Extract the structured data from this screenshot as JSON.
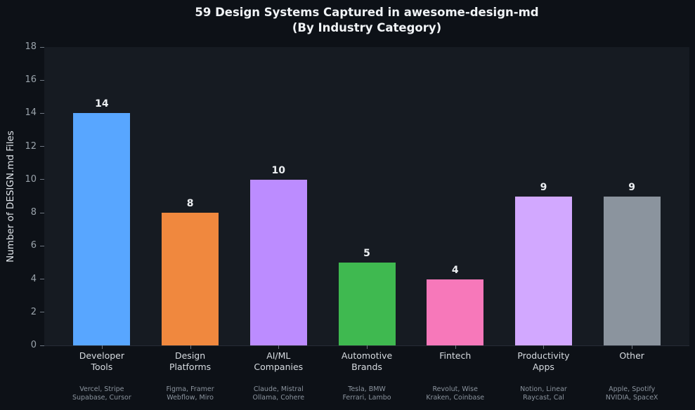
{
  "title": {
    "line1": "59 Design Systems Captured in awesome-design-md",
    "line2": "(By Industry Category)"
  },
  "y_axis": {
    "label": "Number of DESIGN.md Files",
    "ticks": [
      0,
      2,
      4,
      6,
      8,
      10,
      12,
      14,
      16,
      18
    ]
  },
  "chart_data": {
    "type": "bar",
    "title": "59 Design Systems Captured in awesome-design-md (By Industry Category)",
    "xlabel": "",
    "ylabel": "Number of DESIGN.md Files",
    "ylim": [
      0,
      18
    ],
    "grid": false,
    "legend": "none",
    "categories": [
      "Developer\nTools",
      "Design\nPlatforms",
      "AI/ML\nCompanies",
      "Automotive\nBrands",
      "Fintech",
      "Productivity\nApps",
      "Other"
    ],
    "values": [
      14,
      8,
      10,
      5,
      4,
      9,
      9
    ],
    "value_labels": [
      "14",
      "8",
      "10",
      "5",
      "4",
      "9",
      "9"
    ],
    "bar_colors": [
      "#58a6ff",
      "#f0883e",
      "#bc8cff",
      "#3fb950",
      "#f778ba",
      "#d2a8ff",
      "#8b949e"
    ],
    "category_examples": [
      "Vercel, Stripe\nSupabase, Cursor",
      "Figma, Framer\nWebflow, Miro",
      "Claude, Mistral\nOllama, Cohere",
      "Tesla, BMW\nFerrari, Lambo",
      "Revolut, Wise\nKraken, Coinbase",
      "Notion, Linear\nRaycast, Cal",
      "Apple, Spotify\nNVIDIA, SpaceX"
    ]
  },
  "colors": {
    "figure_bg": "#0d1117",
    "plot_bg": "#161b22",
    "title_text": "#f0f3f6",
    "tick_text": "#9aa3ab",
    "category_text": "#d7dce1",
    "example_text": "#8b949e",
    "value_text": "#eceff2",
    "tick_mark": "#6e7681"
  }
}
